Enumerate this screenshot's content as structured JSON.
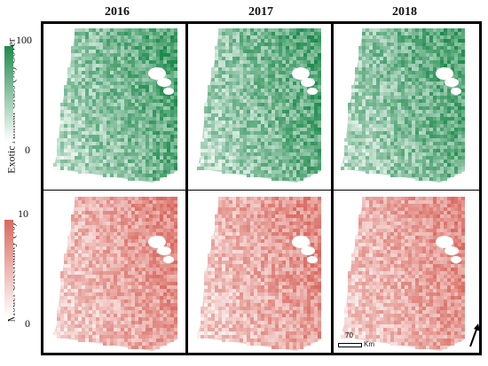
{
  "years": [
    "2016",
    "2017",
    "2018"
  ],
  "rows": [
    {
      "label": "Exotic Annual Grass (%) Cover",
      "scale_max": "100",
      "scale_min": "0",
      "color_low": "#ffffff",
      "color_high": "#1e8a4c"
    },
    {
      "label": "Model Uncertainty (%)",
      "scale_max": "10",
      "scale_min": "0",
      "color_low": "#ffffff",
      "color_high": "#d9695f"
    }
  ],
  "scale_bar": {
    "value": "70",
    "unit": "Km"
  },
  "north_arrow": "north-arrow-icon"
}
